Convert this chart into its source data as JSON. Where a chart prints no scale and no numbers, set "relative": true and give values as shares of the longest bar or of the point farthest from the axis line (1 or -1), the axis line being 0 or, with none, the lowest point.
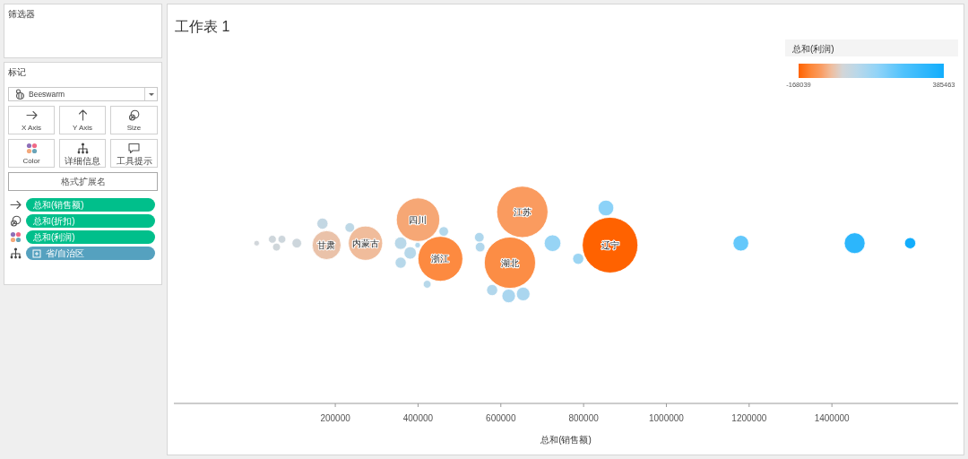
{
  "chart_data": [
    {
      "type": "other",
      "annotations": [
        "筛选器",
        "标记",
        "Beeswarm",
        "X Axis",
        "Y Axis",
        "Size",
        "Color",
        "详细信息",
        "工具提示",
        "格式扩展名",
        "总和(销售额)",
        "总和(折扣)",
        "总和(利润)",
        "省/自治区"
      ]
    },
    {
      "type": "bubble",
      "title": "工作表 1",
      "xlabel": "总和(销售额)",
      "clabel": "总和(利润)",
      "clim": [
        -168039,
        385463
      ],
      "cticks": [
        -168039,
        385463
      ],
      "xlim": [
        -190000,
        1705000
      ],
      "xticks": [
        200000,
        400000,
        600000,
        800000,
        1000000,
        1200000,
        1400000
      ],
      "relative": true,
      "x": [
        10000,
        48000,
        71000,
        58000,
        107000,
        169000,
        179000,
        235000,
        273000,
        358000,
        400000,
        399000,
        381000,
        358000,
        462000,
        454000,
        422000,
        548000,
        550000,
        579000,
        622000,
        619000,
        652000,
        654000,
        725000,
        787000,
        854000,
        864000,
        1180000,
        1455000,
        1589000
      ],
      "values": [
        0.82,
        0.84,
        0.84,
        0.8,
        0.82,
        0.92,
        0.81,
        0.9,
        0.82,
        0.82,
        0.94,
        0.81,
        0.77,
        0.72,
        0.88,
        0.74,
        0.61,
        0.85,
        0.8,
        0.58,
        0.72,
        0.55,
        0.98,
        0.56,
        0.82,
        0.74,
        1,
        0.81,
        0.82,
        0.82,
        0.82
      ],
      "sizes": [
        0.01,
        0.02,
        0.02,
        0.02,
        0.03,
        0.04,
        0.27,
        0.03,
        0.38,
        0.05,
        0.61,
        0.01,
        0.05,
        0.04,
        0.03,
        0.65,
        0.02,
        0.03,
        0.03,
        0.04,
        0.85,
        0.06,
        0.85,
        0.06,
        0.09,
        0.04,
        0.08,
        1,
        0.08,
        0.14,
        0.04
      ],
      "cvalues": [
        5000,
        10000,
        12000,
        8000,
        12000,
        35000,
        -35000,
        45000,
        -45000,
        55000,
        -70000,
        70000,
        60000,
        60000,
        65000,
        -115000,
        60000,
        75000,
        70000,
        70000,
        -110000,
        85000,
        -85000,
        85000,
        120000,
        110000,
        140000,
        -168039,
        200000,
        320000,
        385463
      ],
      "annotations": [
        {
          "text": "甘肃",
          "x": 179000,
          "y": 0.81
        },
        {
          "text": "内蒙古",
          "x": 273000,
          "y": 0.82
        },
        {
          "text": "四川",
          "x": 400000,
          "y": 0.94
        },
        {
          "text": "浙江",
          "x": 454000,
          "y": 0.74
        },
        {
          "text": "江苏",
          "x": 652000,
          "y": 0.98
        },
        {
          "text": "湖北",
          "x": 622000,
          "y": 0.72
        },
        {
          "text": "辽宁",
          "x": 864000,
          "y": 0.81
        }
      ]
    }
  ]
}
